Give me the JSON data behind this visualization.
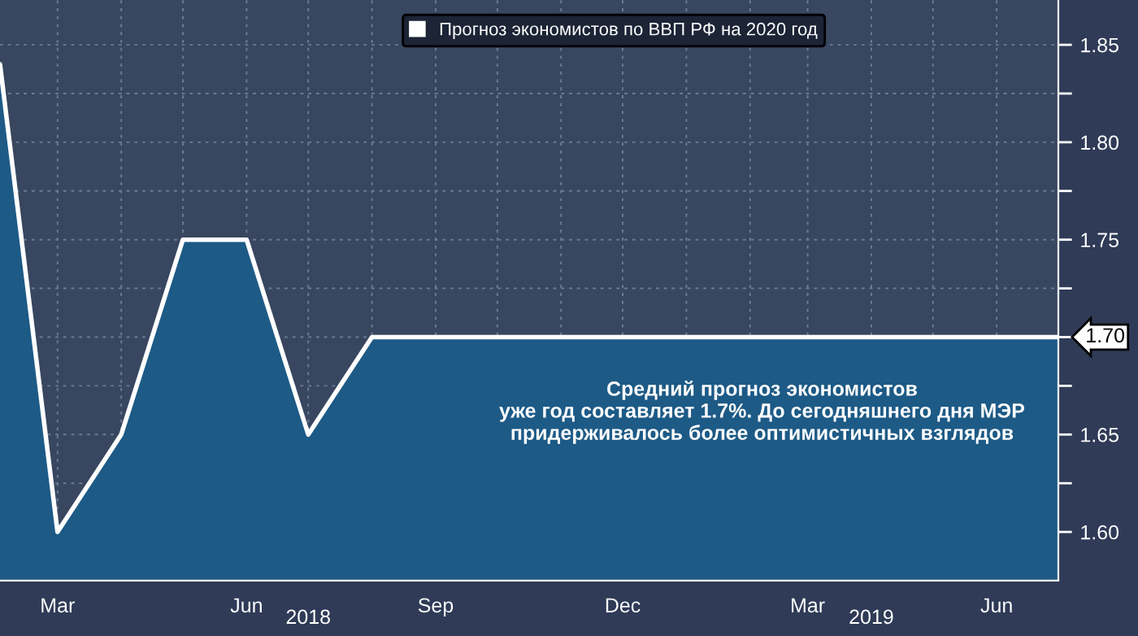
{
  "chart_data": {
    "type": "area",
    "x": [
      "2018-02",
      "2018-03",
      "2018-04",
      "2018-05",
      "2018-06",
      "2018-07",
      "2018-08",
      "2018-09",
      "2018-10",
      "2018-11",
      "2018-12",
      "2019-01",
      "2019-02",
      "2019-03",
      "2019-04",
      "2019-05",
      "2019-06",
      "2019-07"
    ],
    "series": [
      {
        "name": "Прогноз экономистов по ВВП РФ на 2020 год",
        "color": "#ffffff",
        "values": [
          1.84,
          1.6,
          1.65,
          1.75,
          1.75,
          1.65,
          1.7,
          1.7,
          1.7,
          1.7,
          1.7,
          1.7,
          1.7,
          1.7,
          1.7,
          1.7,
          1.7,
          1.7
        ],
        "value_labels": [
          null,
          null,
          null,
          null,
          null,
          null,
          null,
          null,
          null,
          null,
          null,
          null,
          null,
          null,
          null,
          null,
          null,
          "1.70"
        ]
      }
    ],
    "xlim": [
      "2018-02",
      "2019-07"
    ],
    "xticks": [
      {
        "value": "2018-03",
        "label": "Mar"
      },
      {
        "value": "2018-04",
        "label": null
      },
      {
        "value": "2018-05",
        "label": null
      },
      {
        "value": "2018-06",
        "label": "Jun"
      },
      {
        "value": "2018-07",
        "label": null
      },
      {
        "value": "2018-08",
        "label": null
      },
      {
        "value": "2018-09",
        "label": "Sep"
      },
      {
        "value": "2018-10",
        "label": null
      },
      {
        "value": "2018-11",
        "label": null
      },
      {
        "value": "2018-12",
        "label": "Dec"
      },
      {
        "value": "2019-01",
        "label": null
      },
      {
        "value": "2019-02",
        "label": null
      },
      {
        "value": "2019-03",
        "label": "Mar"
      },
      {
        "value": "2019-04",
        "label": null
      },
      {
        "value": "2019-05",
        "label": null
      },
      {
        "value": "2019-06",
        "label": "Jun"
      },
      {
        "value": "2019-07",
        "label": null
      }
    ],
    "x2ticks": [
      {
        "value": "2018-07",
        "label": "2018"
      },
      {
        "value": "2019-04",
        "label": "2019"
      }
    ],
    "ylim": [
      1.575,
      1.873
    ],
    "x2lim": [
      "2018-02",
      "2019-07"
    ],
    "yticks": [
      {
        "value": 1.6,
        "label": "1.60"
      },
      {
        "value": 1.625,
        "label": null
      },
      {
        "value": 1.65,
        "label": "1.65"
      },
      {
        "value": 1.675,
        "label": null
      },
      {
        "value": 1.7,
        "label": null
      },
      {
        "value": 1.725,
        "label": null
      },
      {
        "value": 1.75,
        "label": "1.75"
      },
      {
        "value": 1.775,
        "label": null
      },
      {
        "value": 1.8,
        "label": "1.80"
      },
      {
        "value": 1.825,
        "label": null
      },
      {
        "value": 1.85,
        "label": "1.85"
      }
    ],
    "grid": true,
    "legend": "top",
    "annotations": [
      "Средний прогноз экономистов\nуже год составляет 1.7%. До сегодняшнего дня МЭР\nпридерживалось более оптимистичных взглядов"
    ]
  }
}
